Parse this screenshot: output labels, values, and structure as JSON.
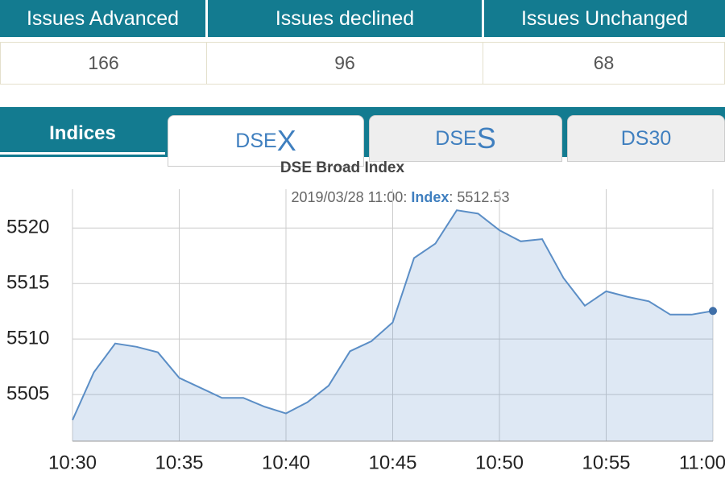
{
  "summary": {
    "headers": [
      "Issues Advanced",
      "Issues declined",
      "Issues Unchanged"
    ],
    "values": [
      166,
      96,
      68
    ]
  },
  "tabs": {
    "label": "Indices",
    "items": [
      {
        "prefix": "DSE",
        "suffix": "X"
      },
      {
        "prefix": "DSE",
        "suffix": "S"
      },
      {
        "prefix": "DS30",
        "suffix": null
      }
    ]
  },
  "chart_data": {
    "type": "line",
    "title": "DSE Broad Index",
    "tooltip": {
      "time": "2019/03/28 11:00",
      "sep": ":",
      "label": "Index",
      "value": 5512.53
    },
    "categories": [
      "10:30",
      null,
      null,
      null,
      null,
      "10:35",
      null,
      null,
      null,
      null,
      "10:40",
      null,
      null,
      null,
      null,
      "10:45",
      null,
      null,
      null,
      null,
      "10:50",
      null,
      null,
      null,
      null,
      "10:55",
      null,
      null,
      null,
      null,
      "11:00"
    ],
    "series": [
      {
        "name": "Index",
        "color": "#5b8ec6",
        "values": [
          5502.7,
          5507,
          5509.6,
          5509.3,
          5508.8,
          5506.5,
          5505.6,
          5504.7,
          5504.7,
          5503.9,
          5503.3,
          5504.3,
          5505.8,
          5508.9,
          5509.8,
          5511.5,
          5517.3,
          5518.6,
          5521.6,
          5521.3,
          5519.8,
          5518.8,
          5519.0,
          5515.5,
          5513.0,
          5514.3,
          5513.8,
          5513.4,
          5512.2,
          5512.2,
          5512.53
        ]
      }
    ],
    "ylim": [
      5500.8,
      5523.5
    ],
    "yticks": [
      5505,
      5510,
      5515,
      5520
    ],
    "grid": true
  }
}
